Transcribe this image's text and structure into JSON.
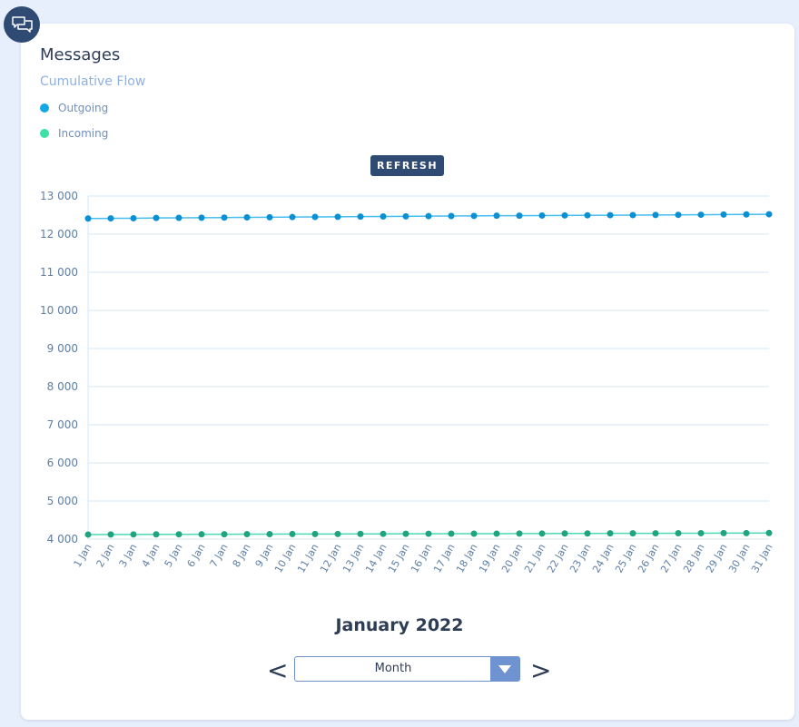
{
  "card": {
    "title": "Messages",
    "subtitle": "Cumulative Flow",
    "badge_icon": "chat-bubbles-icon",
    "refresh_label": "REFRESH"
  },
  "legend": [
    {
      "label": "Outgoing",
      "color": "#13a7e6"
    },
    {
      "label": "Incoming",
      "color": "#3ee0a5"
    }
  ],
  "colors": {
    "outgoing_line": "#46bdf0",
    "outgoing_point": "#0a8fd2",
    "incoming_line": "#4fd8b3",
    "incoming_point": "#20a47f",
    "grid": "#d5e6f5",
    "tick_text": "#5d7ea5",
    "accent": "#2f4a73"
  },
  "chart_data": {
    "type": "line",
    "x": [
      "1 Jan",
      "2 Jan",
      "3 Jan",
      "4 Jan",
      "5 Jan",
      "6 Jan",
      "7 Jan",
      "8 Jan",
      "9 Jan",
      "10 Jan",
      "11 Jan",
      "12 Jan",
      "13 Jan",
      "14 Jan",
      "15 Jan",
      "16 Jan",
      "17 Jan",
      "18 Jan",
      "19 Jan",
      "20 Jan",
      "21 Jan",
      "22 Jan",
      "23 Jan",
      "24 Jan",
      "25 Jan",
      "26 Jan",
      "27 Jan",
      "28 Jan",
      "29 Jan",
      "30 Jan",
      "31 Jan"
    ],
    "series": [
      {
        "name": "Outgoing",
        "values": [
          12410,
          12415,
          12418,
          12425,
          12428,
          12432,
          12436,
          12440,
          12444,
          12448,
          12452,
          12456,
          12460,
          12465,
          12468,
          12472,
          12476,
          12480,
          12484,
          12486,
          12489,
          12492,
          12495,
          12498,
          12500,
          12503,
          12507,
          12510,
          12514,
          12518,
          12522
        ]
      },
      {
        "name": "Incoming",
        "values": [
          4120,
          4122,
          4123,
          4125,
          4126,
          4127,
          4128,
          4130,
          4131,
          4133,
          4134,
          4135,
          4137,
          4138,
          4139,
          4141,
          4142,
          4143,
          4144,
          4146,
          4147,
          4148,
          4149,
          4151,
          4152,
          4153,
          4155,
          4156,
          4157,
          4158,
          4160
        ]
      }
    ],
    "yticks": [
      4000,
      5000,
      6000,
      7000,
      8000,
      9000,
      10000,
      11000,
      12000,
      13000
    ],
    "ytick_labels": [
      "4 000",
      "5 000",
      "6 000",
      "7 000",
      "8 000",
      "9 000",
      "10 000",
      "11 000",
      "12 000",
      "13 000"
    ],
    "ylim": [
      4000,
      13000
    ],
    "grid": true,
    "legend_position": "top-left"
  },
  "footer": {
    "period_label": "January 2022",
    "prev_label": "<",
    "next_label": ">",
    "select_value": "Month"
  }
}
